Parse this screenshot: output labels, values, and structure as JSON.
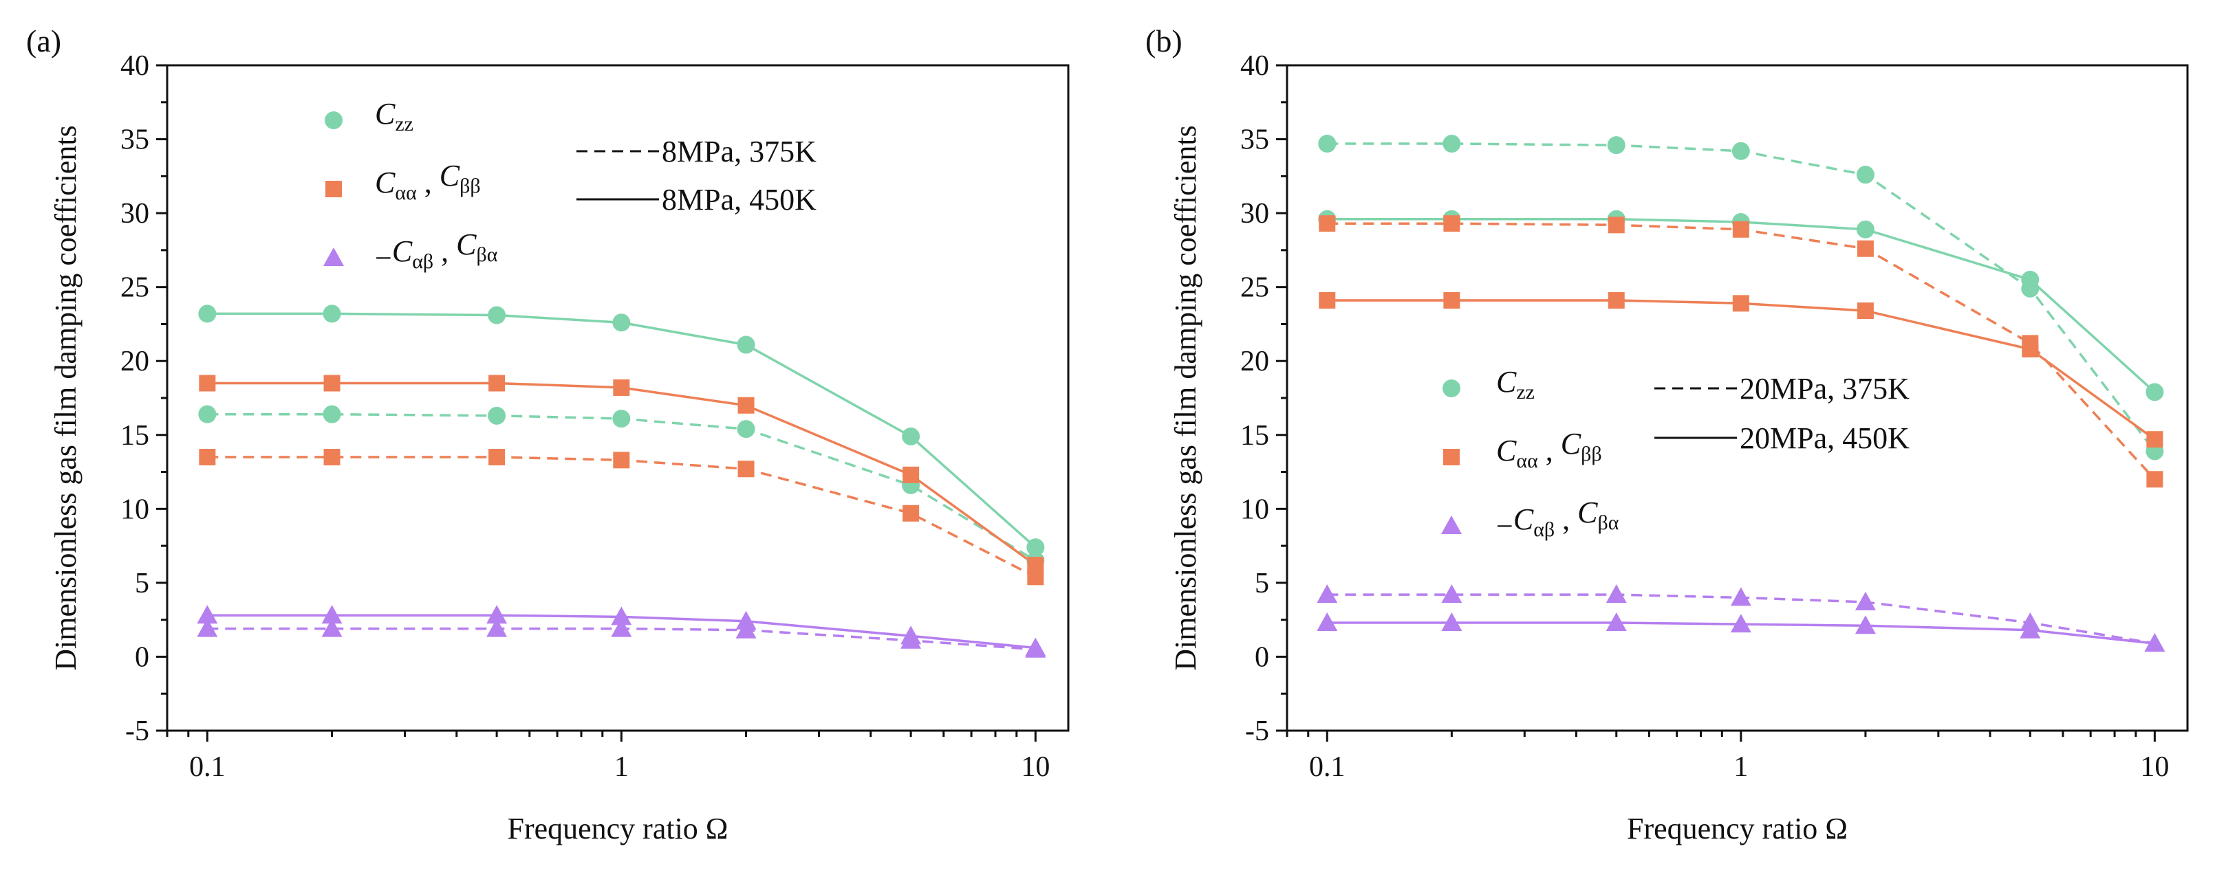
{
  "chart_data": [
    {
      "type": "line",
      "panel": "(a)",
      "xscale": "log",
      "x": [
        0.1,
        0.2,
        0.5,
        1,
        2,
        5,
        10
      ],
      "xlim": [
        0.08,
        12
      ],
      "xticks": [
        "0.1",
        "1",
        "10"
      ],
      "ylim": [
        -5,
        40
      ],
      "yticks": [
        "-5",
        "0",
        "5",
        "10",
        "15",
        "20",
        "25",
        "30",
        "35",
        "40"
      ],
      "xlabel": "Frequency ratio Ω",
      "ylabel": "Dimensionless gas film damping coefficients",
      "legend_position": "top-left",
      "line_legend": {
        "dashed": "8MPa, 375K",
        "solid": "8MPa, 450K"
      },
      "marker_legend": [
        {
          "marker": "circle",
          "main": "C",
          "sub": "zz"
        },
        {
          "marker": "square",
          "main": "C",
          "sub": "αα",
          "sep": " , ",
          "main2": "C",
          "sub2": "ββ"
        },
        {
          "marker": "triangle",
          "prefix": "−",
          "main": "C",
          "sub": "αβ",
          "sep": " , ",
          "main2": "C",
          "sub2": "βα"
        }
      ],
      "series": [
        {
          "name": "Czz 375K",
          "color": "#7fd4ac",
          "marker": "circle",
          "dash": true,
          "values": [
            16.4,
            16.4,
            16.3,
            16.1,
            15.4,
            11.6,
            6.5
          ]
        },
        {
          "name": "Czz 450K",
          "color": "#7fd4ac",
          "marker": "circle",
          "dash": false,
          "values": [
            23.2,
            23.2,
            23.1,
            22.6,
            21.1,
            14.9,
            7.4
          ]
        },
        {
          "name": "Cαα, Cββ 375K",
          "color": "#ee7f55",
          "marker": "square",
          "dash": true,
          "values": [
            13.5,
            13.5,
            13.5,
            13.3,
            12.7,
            9.7,
            5.4
          ]
        },
        {
          "name": "Cαα, Cββ 450K",
          "color": "#ee7f55",
          "marker": "square",
          "dash": false,
          "values": [
            18.5,
            18.5,
            18.5,
            18.2,
            17.0,
            12.3,
            6.2
          ]
        },
        {
          "name": "−Cαβ, Cβα 375K",
          "color": "#b57fef",
          "marker": "triangle",
          "dash": true,
          "values": [
            1.9,
            1.9,
            1.9,
            1.9,
            1.8,
            1.1,
            0.5
          ]
        },
        {
          "name": "−Cαβ, Cβα 450K",
          "color": "#b57fef",
          "marker": "triangle",
          "dash": false,
          "values": [
            2.8,
            2.8,
            2.8,
            2.7,
            2.4,
            1.4,
            0.6
          ]
        }
      ]
    },
    {
      "type": "line",
      "panel": "(b)",
      "xscale": "log",
      "x": [
        0.1,
        0.2,
        0.5,
        1,
        2,
        5,
        10
      ],
      "xlim": [
        0.08,
        12
      ],
      "xticks": [
        "0.1",
        "1",
        "10"
      ],
      "ylim": [
        -5,
        40
      ],
      "yticks": [
        "-5",
        "0",
        "5",
        "10",
        "15",
        "20",
        "25",
        "30",
        "35",
        "40"
      ],
      "xlabel": "Frequency ratio Ω",
      "ylabel": "Dimensionless gas film damping coefficients",
      "legend_position": "center-left",
      "line_legend": {
        "dashed": "20MPa, 375K",
        "solid": "20MPa, 450K"
      },
      "marker_legend": [
        {
          "marker": "circle",
          "main": "C",
          "sub": "zz"
        },
        {
          "marker": "square",
          "main": "C",
          "sub": "αα",
          "sep": " , ",
          "main2": "C",
          "sub2": "ββ"
        },
        {
          "marker": "triangle",
          "prefix": "−",
          "main": "C",
          "sub": "αβ",
          "sep": " , ",
          "main2": "C",
          "sub2": "βα"
        }
      ],
      "series": [
        {
          "name": "Czz 375K",
          "color": "#7fd4ac",
          "marker": "circle",
          "dash": true,
          "values": [
            34.7,
            34.7,
            34.6,
            34.2,
            32.6,
            24.9,
            13.9
          ]
        },
        {
          "name": "Czz 450K",
          "color": "#7fd4ac",
          "marker": "circle",
          "dash": false,
          "values": [
            29.6,
            29.6,
            29.6,
            29.4,
            28.9,
            25.5,
            17.9
          ]
        },
        {
          "name": "Cαα, Cββ 375K",
          "color": "#ee7f55",
          "marker": "square",
          "dash": true,
          "values": [
            29.3,
            29.3,
            29.2,
            28.9,
            27.6,
            21.2,
            12.0
          ]
        },
        {
          "name": "Cαα, Cββ 450K",
          "color": "#ee7f55",
          "marker": "square",
          "dash": false,
          "values": [
            24.1,
            24.1,
            24.1,
            23.9,
            23.4,
            20.8,
            14.7
          ]
        },
        {
          "name": "−Cαβ, Cβα 375K",
          "color": "#b57fef",
          "marker": "triangle",
          "dash": true,
          "values": [
            4.2,
            4.2,
            4.2,
            4.0,
            3.7,
            2.3,
            0.9
          ]
        },
        {
          "name": "−Cαβ, Cβα 450K",
          "color": "#b57fef",
          "marker": "triangle",
          "dash": false,
          "values": [
            2.3,
            2.3,
            2.3,
            2.2,
            2.1,
            1.8,
            0.9
          ]
        }
      ]
    }
  ]
}
